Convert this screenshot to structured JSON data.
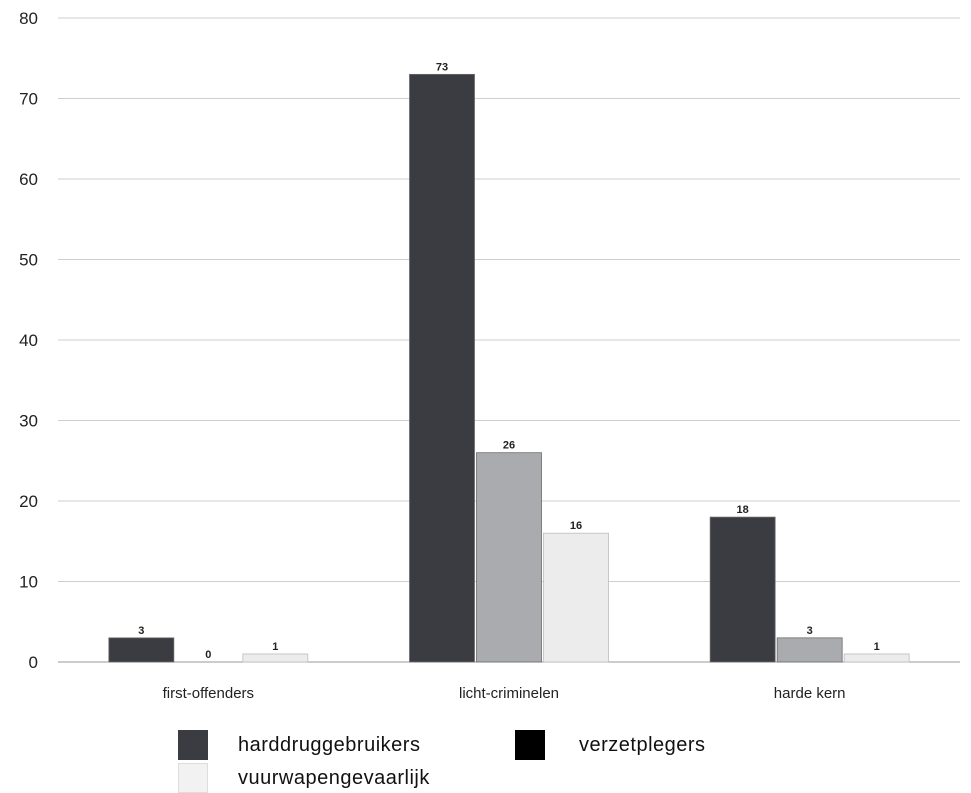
{
  "chart_data": {
    "type": "bar",
    "categories": [
      "first-offenders",
      "licht-criminelen",
      "harde kern"
    ],
    "series": [
      {
        "name": "harddruggebruikers",
        "values": [
          3,
          73,
          18
        ],
        "color": "#3a3c42"
      },
      {
        "name": "verzetplegers",
        "values": [
          0,
          26,
          3
        ],
        "color": "#a9abaf"
      },
      {
        "name": "vuurwapengevaarlijk",
        "values": [
          1,
          16,
          1
        ],
        "color": "#ececec"
      }
    ],
    "legend_colors": [
      "#3a3c42",
      "#000000",
      "#ececec"
    ],
    "title": "",
    "xlabel": "",
    "ylabel": "",
    "ylim": [
      0,
      80
    ],
    "yticks": [
      0,
      10,
      20,
      30,
      40,
      50,
      60,
      70,
      80
    ],
    "grid": true,
    "legend_position": "bottom"
  }
}
